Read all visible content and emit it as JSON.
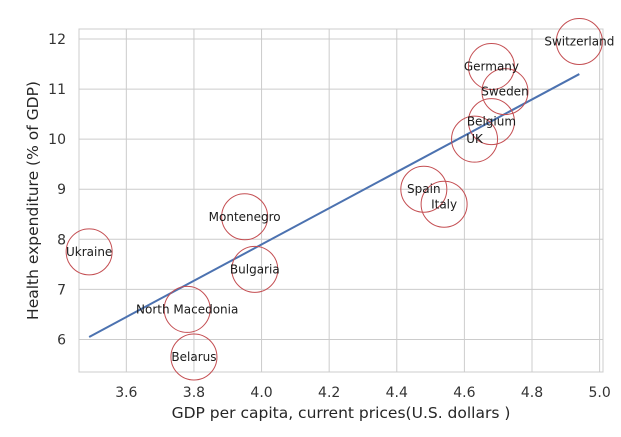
{
  "chart_data": {
    "type": "scatter",
    "title": "",
    "xlabel": "GDP per capita, current prices(U.S. dollars )",
    "ylabel": "Health expenditure (% of GDP)",
    "xlim": [
      3.46,
      5.01
    ],
    "ylim": [
      5.35,
      12.2
    ],
    "x_ticks": [
      3.6,
      3.8,
      4.0,
      4.2,
      4.4,
      4.6,
      4.8,
      5.0
    ],
    "x_tick_labels": [
      "3.6",
      "3.8",
      "4.0",
      "4.2",
      "4.4",
      "4.6",
      "4.8",
      "5.0"
    ],
    "y_ticks": [
      6,
      7,
      8,
      9,
      10,
      11,
      12
    ],
    "y_tick_labels": [
      "6",
      "7",
      "8",
      "9",
      "10",
      "11",
      "12"
    ],
    "grid": true,
    "colors": {
      "marker_edge": "#c44e52",
      "trend_line": "#4c72b0",
      "grid": "#cccccc",
      "axes_edge": "#cccccc"
    },
    "points": [
      {
        "label": "Ukraine",
        "x": 3.49,
        "y": 7.75
      },
      {
        "label": "North Macedonia",
        "x": 3.78,
        "y": 6.6
      },
      {
        "label": "Belarus",
        "x": 3.8,
        "y": 5.65
      },
      {
        "label": "Montenegro",
        "x": 3.95,
        "y": 8.45
      },
      {
        "label": "Bulgaria",
        "x": 3.98,
        "y": 7.4
      },
      {
        "label": "Spain",
        "x": 4.48,
        "y": 9.0
      },
      {
        "label": "Italy",
        "x": 4.54,
        "y": 8.7
      },
      {
        "label": "UK",
        "x": 4.63,
        "y": 10.0
      },
      {
        "label": "Belgium",
        "x": 4.68,
        "y": 10.35
      },
      {
        "label": "Germany",
        "x": 4.68,
        "y": 11.45
      },
      {
        "label": "Sweden",
        "x": 4.72,
        "y": 10.95
      },
      {
        "label": "Switzerland",
        "x": 4.94,
        "y": 11.95
      }
    ],
    "trendline": {
      "x": [
        3.49,
        4.94
      ],
      "y": [
        6.05,
        11.3
      ]
    }
  }
}
